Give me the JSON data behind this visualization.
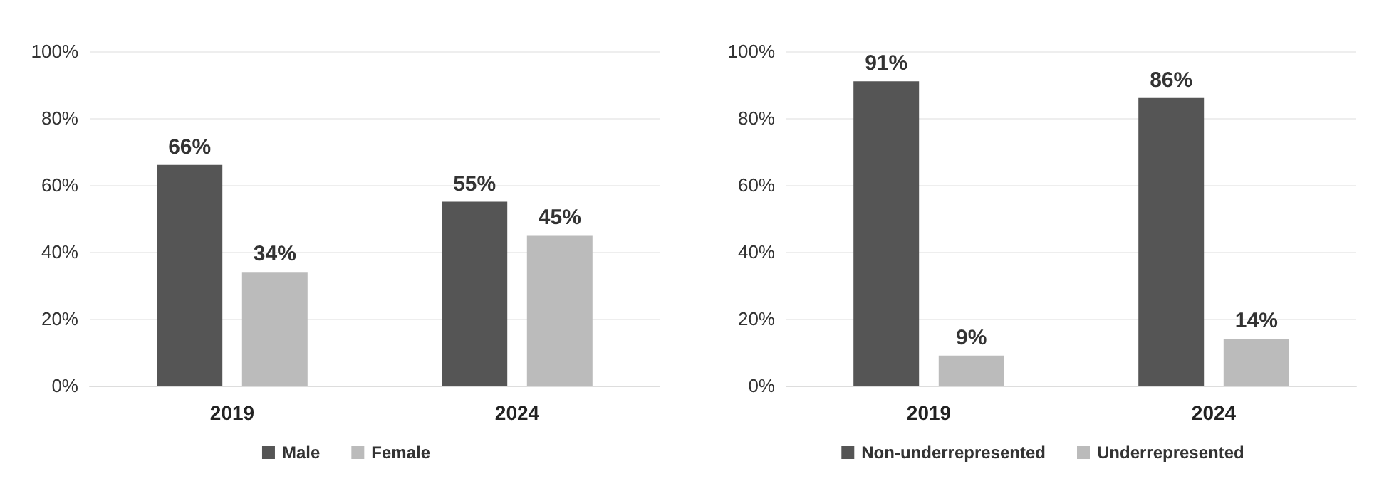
{
  "chart_data": [
    {
      "type": "bar",
      "categories": [
        "2019",
        "2024"
      ],
      "series": [
        {
          "name": "Male",
          "color": "#555555",
          "values": [
            66,
            55
          ],
          "value_labels": [
            "66%",
            "55%"
          ]
        },
        {
          "name": "Female",
          "color": "#bbbbbb",
          "values": [
            34,
            45
          ],
          "value_labels": [
            "34%",
            "45%"
          ]
        }
      ],
      "ylim": [
        0,
        100
      ],
      "yticks": [
        {
          "value": 0,
          "label": "0%"
        },
        {
          "value": 20,
          "label": "20%"
        },
        {
          "value": 40,
          "label": "40%"
        },
        {
          "value": 60,
          "label": "60%"
        },
        {
          "value": 80,
          "label": "80%"
        },
        {
          "value": 100,
          "label": "100%"
        }
      ],
      "grid": "y",
      "legend": "bottom"
    },
    {
      "type": "bar",
      "categories": [
        "2019",
        "2024"
      ],
      "series": [
        {
          "name": "Non-underrepresented",
          "color": "#555555",
          "values": [
            91,
            86
          ],
          "value_labels": [
            "91%",
            "86%"
          ]
        },
        {
          "name": "Underrepresented",
          "color": "#bbbbbb",
          "values": [
            9,
            14
          ],
          "value_labels": [
            "9%",
            "14%"
          ]
        }
      ],
      "ylim": [
        0,
        100
      ],
      "yticks": [
        {
          "value": 0,
          "label": "0%"
        },
        {
          "value": 20,
          "label": "20%"
        },
        {
          "value": 40,
          "label": "40%"
        },
        {
          "value": 60,
          "label": "60%"
        },
        {
          "value": 80,
          "label": "80%"
        },
        {
          "value": 100,
          "label": "100%"
        }
      ],
      "grid": "y",
      "legend": "bottom"
    }
  ]
}
